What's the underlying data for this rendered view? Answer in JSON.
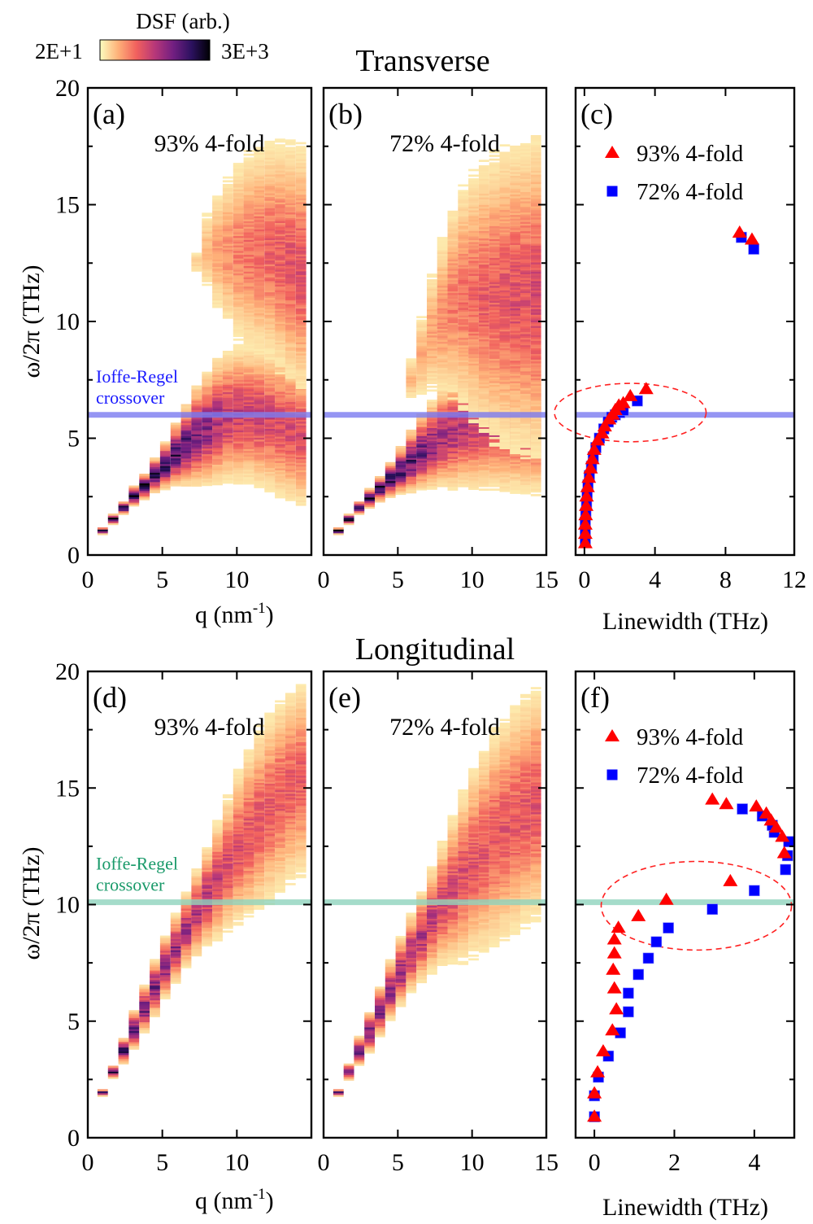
{
  "colorbar": {
    "title": "DSF (arb.)",
    "min_label": "2E+1",
    "max_label": "3E+3",
    "colormap": "magma_r",
    "stops": [
      "#fcfdbf",
      "#feb078",
      "#f1605d",
      "#b73779",
      "#721f81",
      "#2c115f",
      "#000004"
    ]
  },
  "section_titles": {
    "top": "Transverse",
    "bottom": "Longitudinal"
  },
  "shared": {
    "ylabel": "ω/2π (THz)",
    "ylim": [
      0,
      20
    ],
    "yticks": [
      0,
      5,
      10,
      15,
      20
    ],
    "q_xlabel": "q (nm⁻¹)",
    "q_xlabel_base": "q (nm",
    "q_xlabel_sup": "-1",
    "q_xlabel_end": ")",
    "linewidth_xlabel": "Linewidth (THz)"
  },
  "chart_data": [
    {
      "id": "a",
      "type": "heatmap",
      "panel_label": "(a)",
      "title": "93% 4-fold",
      "xlim": [
        0,
        15
      ],
      "xticks": [
        0,
        5,
        10
      ],
      "xtick_labels": [
        "0",
        "5",
        "10"
      ],
      "ylim": [
        0,
        20
      ],
      "ioffe_regel": {
        "y": 6.0,
        "color": "#7b7bf0",
        "label_line1": "Ioffe-Regel",
        "label_line2": "crossover",
        "label_color": "#1a1aff"
      },
      "branches": [
        {
          "q": [
            1.0,
            1.7,
            2.4,
            3.1,
            3.8,
            4.5,
            5.2,
            5.9,
            6.6,
            7.3,
            8.0,
            8.7,
            9.4,
            10.1,
            10.8,
            11.5,
            12.2,
            12.9,
            13.6,
            14.3
          ],
          "center": [
            1.0,
            1.5,
            2.0,
            2.5,
            2.9,
            3.4,
            3.8,
            4.3,
            4.7,
            5.1,
            5.4,
            5.7,
            5.9,
            6.0,
            6.0,
            5.9,
            5.8,
            5.6,
            5.4,
            5.2
          ],
          "half_width": [
            0.1,
            0.15,
            0.2,
            0.3,
            0.4,
            0.55,
            0.75,
            1.0,
            1.3,
            1.6,
            1.8,
            2.0,
            2.1,
            2.2,
            2.2,
            2.3,
            2.3,
            2.4,
            2.4,
            2.4
          ],
          "peak": [
            0.95,
            0.95,
            0.95,
            0.95,
            0.95,
            0.9,
            0.85,
            0.8,
            0.75,
            0.68,
            0.62,
            0.55,
            0.5,
            0.47,
            0.45,
            0.44,
            0.43,
            0.42,
            0.41,
            0.4
          ]
        },
        {
          "q": [
            7.3,
            8.0,
            8.7,
            9.4,
            10.1,
            10.8,
            11.5,
            12.2,
            12.9,
            13.6,
            14.3
          ],
          "center": [
            12.5,
            13.0,
            13.0,
            13.0,
            13.0,
            13.0,
            13.0,
            13.0,
            12.8,
            12.5,
            12.2
          ],
          "half_width": [
            0.5,
            1.5,
            2.2,
            2.6,
            3.0,
            3.3,
            3.5,
            3.6,
            3.8,
            3.9,
            4.0
          ],
          "peak": [
            0.1,
            0.15,
            0.2,
            0.24,
            0.28,
            0.3,
            0.32,
            0.34,
            0.36,
            0.38,
            0.4
          ]
        }
      ]
    },
    {
      "id": "b",
      "type": "heatmap",
      "panel_label": "(b)",
      "title": "72% 4-fold",
      "xlim": [
        0,
        15
      ],
      "xticks": [
        0,
        5,
        10,
        15
      ],
      "xtick_labels": [
        "0",
        "5",
        "10",
        "15"
      ],
      "ylim": [
        0,
        20
      ],
      "ioffe_regel": {
        "y": 6.0,
        "color": "#7b7bf0"
      },
      "branches": [
        {
          "q": [
            1.0,
            1.7,
            2.4,
            3.1,
            3.8,
            4.5,
            5.2,
            5.9,
            6.6,
            7.3,
            8.0,
            8.7,
            9.4,
            10.1,
            10.8,
            11.5,
            12.2,
            12.9,
            13.6,
            14.3
          ],
          "center": [
            1.0,
            1.5,
            2.0,
            2.4,
            2.8,
            3.2,
            3.6,
            4.0,
            4.4,
            4.7,
            5.0,
            5.2,
            5.4,
            5.5,
            5.6,
            5.6,
            5.6,
            5.6,
            5.5,
            5.5
          ],
          "half_width": [
            0.1,
            0.15,
            0.2,
            0.3,
            0.4,
            0.55,
            0.75,
            1.0,
            1.2,
            1.4,
            1.6,
            1.8,
            1.9,
            2.0,
            2.1,
            2.1,
            2.2,
            2.2,
            2.2,
            2.2
          ],
          "peak": [
            0.95,
            0.95,
            0.95,
            0.95,
            0.9,
            0.85,
            0.8,
            0.75,
            0.7,
            0.62,
            0.56,
            0.52,
            0.5,
            0.48,
            0.46,
            0.45,
            0.44,
            0.43,
            0.42,
            0.42
          ]
        },
        {
          "q": [
            5.9,
            6.6,
            7.3,
            8.0,
            8.7,
            9.4,
            10.1,
            10.8,
            11.5,
            12.2,
            12.9,
            13.6,
            14.3
          ],
          "center": [
            7.5,
            8.5,
            9.5,
            10.2,
            10.8,
            11.0,
            11.0,
            11.0,
            11.0,
            11.0,
            11.0,
            11.0,
            11.0
          ],
          "half_width": [
            0.8,
            1.5,
            2.2,
            2.8,
            3.3,
            3.8,
            4.2,
            4.5,
            4.7,
            4.9,
            5.0,
            5.1,
            5.2
          ],
          "peak": [
            0.15,
            0.18,
            0.2,
            0.24,
            0.28,
            0.3,
            0.32,
            0.35,
            0.37,
            0.38,
            0.4,
            0.4,
            0.42
          ]
        }
      ]
    },
    {
      "id": "c",
      "type": "scatter",
      "panel_label": "(c)",
      "xlim": [
        -0.5,
        11.9
      ],
      "xticks": [
        0,
        4,
        8
      ],
      "xtick_labels": [
        "0",
        "4",
        "8",
        "12"
      ],
      "xtick_label_values": [
        0,
        4,
        8,
        11.9
      ],
      "ylim": [
        0,
        20
      ],
      "ioffe_regel": {
        "y": 6.0,
        "color": "#7b7bf0"
      },
      "ellipse": {
        "cx": 2.6,
        "cy": 6.1,
        "rx": 4.3,
        "ry": 1.25,
        "color": "#ff2020"
      },
      "series": [
        {
          "name": "93% 4-fold",
          "marker": "triangle",
          "color": "#ff0000",
          "x": [
            0.05,
            0.05,
            0.05,
            0.07,
            0.1,
            0.12,
            0.18,
            0.25,
            0.35,
            0.45,
            0.55,
            0.75,
            1.0,
            1.15,
            1.4,
            1.6,
            1.75,
            1.95,
            2.2,
            2.6,
            3.5,
            8.8,
            9.5
          ],
          "y": [
            0.5,
            0.9,
            1.3,
            1.7,
            2.1,
            2.5,
            2.9,
            3.3,
            3.7,
            4.1,
            4.5,
            4.9,
            5.2,
            5.5,
            5.8,
            6.0,
            6.2,
            6.4,
            6.5,
            6.8,
            7.1,
            13.8,
            13.5
          ]
        },
        {
          "name": "72% 4-fold",
          "marker": "square",
          "color": "#0000ff",
          "x": [
            0.05,
            0.05,
            0.05,
            0.08,
            0.12,
            0.15,
            0.2,
            0.28,
            0.4,
            0.5,
            0.65,
            0.85,
            1.1,
            1.35,
            1.55,
            1.75,
            2.0,
            2.2,
            3.0,
            8.9,
            9.6
          ],
          "y": [
            0.6,
            1.0,
            1.4,
            1.8,
            2.2,
            2.6,
            3.0,
            3.4,
            3.8,
            4.2,
            4.6,
            5.0,
            5.4,
            5.7,
            5.9,
            6.0,
            6.1,
            6.2,
            6.6,
            13.6,
            13.1
          ]
        }
      ]
    },
    {
      "id": "d",
      "type": "heatmap",
      "panel_label": "(d)",
      "title": "93% 4-fold",
      "xlim": [
        0,
        15
      ],
      "xticks": [
        0,
        5,
        10
      ],
      "xtick_labels": [
        "0",
        "5",
        "10"
      ],
      "ylim": [
        0,
        20
      ],
      "ioffe_regel": {
        "y": 10.1,
        "color": "#8fd3bd",
        "label_line1": "Ioffe-Regel",
        "label_line2": "crossover",
        "label_color": "#1a9a6a"
      },
      "branches": [
        {
          "q": [
            1.0,
            1.7,
            2.4,
            3.1,
            3.8,
            4.5,
            5.2,
            5.9,
            6.6,
            7.3,
            8.0,
            8.7,
            9.4,
            10.1,
            10.8,
            11.5,
            12.2,
            12.9,
            13.6,
            14.3
          ],
          "center": [
            1.9,
            2.8,
            3.7,
            4.6,
            5.5,
            6.4,
            7.3,
            8.1,
            8.9,
            9.6,
            10.3,
            11.0,
            11.7,
            12.4,
            13.0,
            13.6,
            14.1,
            14.6,
            15.0,
            15.3
          ],
          "half_width": [
            0.1,
            0.2,
            0.4,
            0.6,
            0.75,
            0.9,
            1.0,
            1.1,
            1.2,
            1.4,
            1.6,
            1.9,
            2.2,
            2.5,
            2.8,
            3.0,
            3.1,
            3.2,
            3.2,
            3.2
          ],
          "peak": [
            0.9,
            0.85,
            0.8,
            0.75,
            0.7,
            0.66,
            0.62,
            0.58,
            0.55,
            0.52,
            0.5,
            0.46,
            0.42,
            0.4,
            0.38,
            0.37,
            0.36,
            0.36,
            0.36,
            0.36
          ]
        }
      ]
    },
    {
      "id": "e",
      "type": "heatmap",
      "panel_label": "(e)",
      "title": "72% 4-fold",
      "xlim": [
        0,
        15
      ],
      "xticks": [
        0,
        5,
        10,
        15
      ],
      "xtick_labels": [
        "0",
        "5",
        "10",
        "15"
      ],
      "ylim": [
        0,
        20
      ],
      "ioffe_regel": {
        "y": 10.1,
        "color": "#8fd3bd"
      },
      "branches": [
        {
          "q": [
            1.0,
            1.7,
            2.4,
            3.1,
            3.8,
            4.5,
            5.2,
            5.9,
            6.6,
            7.3,
            8.0,
            8.7,
            9.4,
            10.1,
            10.8,
            11.5,
            12.2,
            12.9,
            13.6,
            14.3
          ],
          "center": [
            1.9,
            2.8,
            3.7,
            4.5,
            5.4,
            6.3,
            7.1,
            7.9,
            8.6,
            9.3,
            10.0,
            10.6,
            11.2,
            11.8,
            12.3,
            12.8,
            13.2,
            13.6,
            14.0,
            14.3
          ],
          "half_width": [
            0.1,
            0.25,
            0.45,
            0.65,
            0.8,
            0.95,
            1.1,
            1.25,
            1.45,
            1.7,
            2.0,
            2.4,
            2.8,
            3.1,
            3.4,
            3.6,
            3.7,
            3.8,
            3.8,
            3.8
          ],
          "peak": [
            0.85,
            0.8,
            0.72,
            0.68,
            0.64,
            0.6,
            0.58,
            0.55,
            0.52,
            0.48,
            0.45,
            0.42,
            0.4,
            0.38,
            0.37,
            0.37,
            0.37,
            0.37,
            0.37,
            0.38
          ]
        }
      ]
    },
    {
      "id": "f",
      "type": "scatter",
      "panel_label": "(f)",
      "xlim": [
        -0.47,
        5.0
      ],
      "xticks": [
        0,
        2,
        4
      ],
      "xtick_labels": [
        "0",
        "2",
        "4"
      ],
      "ylim": [
        0,
        20
      ],
      "ioffe_regel": {
        "y": 10.1,
        "color": "#8fd3bd"
      },
      "ellipse": {
        "cx": 2.55,
        "cy": 9.95,
        "rx": 2.38,
        "ry": 1.9,
        "color": "#ff2020"
      },
      "series": [
        {
          "name": "93% 4-fold",
          "marker": "triangle",
          "color": "#ff0000",
          "x": [
            0.0,
            0.0,
            0.08,
            0.22,
            0.45,
            0.55,
            0.5,
            0.47,
            0.5,
            0.5,
            0.6,
            1.1,
            1.8,
            3.4,
            4.75,
            4.7,
            4.55,
            4.42,
            4.3,
            4.05,
            3.3,
            2.95
          ],
          "y": [
            0.9,
            1.9,
            2.8,
            3.7,
            4.6,
            5.5,
            6.4,
            7.2,
            7.9,
            8.5,
            9.0,
            9.5,
            10.2,
            11.0,
            12.2,
            12.9,
            13.3,
            13.6,
            13.9,
            14.2,
            14.3,
            14.5
          ],
          "comment_order": "low branch then high branch"
        },
        {
          "name": "72% 4-fold",
          "marker": "square",
          "color": "#0000ff",
          "x": [
            0.0,
            0.0,
            0.1,
            0.35,
            0.65,
            0.85,
            0.85,
            1.1,
            1.35,
            1.55,
            1.85,
            2.95,
            4.0,
            4.78,
            4.83,
            4.86,
            4.5,
            4.45,
            4.2,
            3.7
          ],
          "y": [
            0.9,
            1.8,
            2.6,
            3.5,
            4.5,
            5.4,
            6.2,
            7.0,
            7.7,
            8.4,
            9.0,
            9.8,
            10.6,
            11.5,
            12.1,
            12.7,
            13.1,
            13.4,
            13.8,
            14.1
          ]
        }
      ]
    }
  ]
}
